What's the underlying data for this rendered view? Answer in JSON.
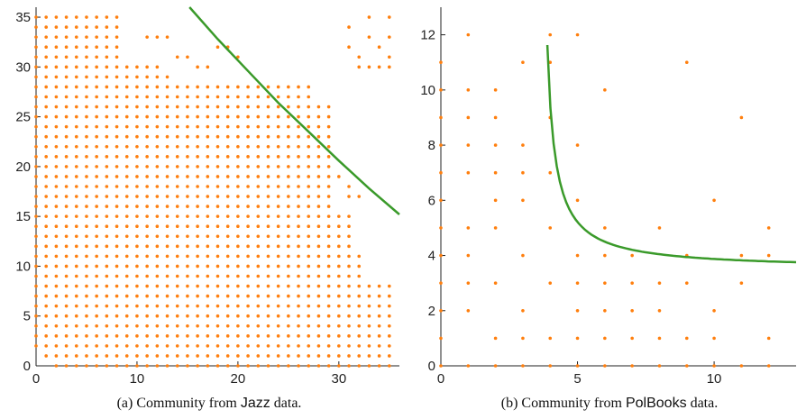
{
  "chart_data": [
    {
      "type": "scatter",
      "caption": {
        "prefix": "(a) Community from ",
        "dataset": "Jazz",
        "suffix": " data."
      },
      "xlim": [
        0,
        36
      ],
      "ylim": [
        0,
        36
      ],
      "xticks": [
        0,
        10,
        20,
        30
      ],
      "yticks": [
        0,
        5,
        10,
        15,
        20,
        25,
        30,
        35
      ],
      "grid": false,
      "point_color": "#ff7f0e",
      "curve_color": "#3a9a2a",
      "points_pattern": {
        "x_range": [
          0,
          35
        ],
        "y_range": [
          0,
          35
        ],
        "fill_rows": [
          {
            "y": 35,
            "x": [
              0,
              8
            ]
          },
          {
            "y": 34,
            "x": [
              0,
              8
            ]
          },
          {
            "y": 33,
            "x": [
              0,
              8
            ]
          },
          {
            "y": 32,
            "x": [
              0,
              8
            ]
          },
          {
            "y": 31,
            "x": [
              0,
              8
            ]
          },
          {
            "y": 30,
            "x": [
              0,
              12
            ]
          },
          {
            "y": 29,
            "x": [
              0,
              13
            ]
          },
          {
            "y": 28,
            "x": [
              0,
              27
            ]
          },
          {
            "y": 27,
            "x": [
              0,
              27
            ]
          },
          {
            "y": 26,
            "x": [
              0,
              29
            ]
          },
          {
            "y": 25,
            "x": [
              0,
              29
            ]
          },
          {
            "y": 24,
            "x": [
              0,
              29
            ]
          },
          {
            "y": 23,
            "x": [
              0,
              29
            ]
          },
          {
            "y": 22,
            "x": [
              0,
              29
            ]
          },
          {
            "y": 21,
            "x": [
              0,
              29
            ]
          },
          {
            "y": 20,
            "x": [
              0,
              29
            ]
          },
          {
            "y": 19,
            "x": [
              0,
              29
            ]
          },
          {
            "y": 18,
            "x": [
              0,
              29
            ]
          },
          {
            "y": 17,
            "x": [
              0,
              29
            ]
          },
          {
            "y": 16,
            "x": [
              0,
              29
            ]
          },
          {
            "y": 15,
            "x": [
              0,
              31
            ]
          },
          {
            "y": 14,
            "x": [
              0,
              31
            ]
          },
          {
            "y": 13,
            "x": [
              0,
              31
            ]
          },
          {
            "y": 12,
            "x": [
              0,
              31
            ]
          },
          {
            "y": 11,
            "x": [
              0,
              32
            ]
          },
          {
            "y": 10,
            "x": [
              0,
              32
            ]
          },
          {
            "y": 9,
            "x": [
              0,
              32
            ]
          },
          {
            "y": 8,
            "x": [
              0,
              35
            ]
          },
          {
            "y": 7,
            "x": [
              0,
              35
            ]
          },
          {
            "y": 6,
            "x": [
              0,
              35
            ]
          },
          {
            "y": 5,
            "x": [
              0,
              35
            ]
          },
          {
            "y": 4,
            "x": [
              0,
              35
            ]
          },
          {
            "y": 3,
            "x": [
              0,
              35
            ]
          },
          {
            "y": 2,
            "x": [
              0,
              35
            ]
          },
          {
            "y": 1,
            "x": [
              1,
              35
            ]
          },
          {
            "y": 0,
            "x": [
              2,
              35
            ]
          }
        ],
        "extra_points": [
          [
            33,
            35
          ],
          [
            35,
            35
          ],
          [
            31,
            34
          ],
          [
            33,
            33
          ],
          [
            35,
            33
          ],
          [
            31,
            32
          ],
          [
            34,
            32
          ],
          [
            32,
            31
          ],
          [
            35,
            31
          ],
          [
            32,
            30
          ],
          [
            33,
            30
          ],
          [
            34,
            30
          ],
          [
            35,
            30
          ],
          [
            18,
            32
          ],
          [
            19,
            32
          ],
          [
            20,
            31
          ],
          [
            11,
            33
          ],
          [
            12,
            33
          ],
          [
            13,
            33
          ],
          [
            14,
            31
          ],
          [
            15,
            31
          ],
          [
            16,
            30
          ],
          [
            17,
            30
          ],
          [
            30,
            19
          ],
          [
            31,
            18
          ],
          [
            31,
            17
          ],
          [
            32,
            17
          ]
        ]
      },
      "curve": {
        "formula": "y = 36 * (1 - (x - 15)^2 / ... ) approx",
        "points": [
          [
            15.2,
            36
          ],
          [
            18,
            32.8
          ],
          [
            21,
            29.6
          ],
          [
            24,
            26.4
          ],
          [
            27,
            23.5
          ],
          [
            30,
            20.6
          ],
          [
            33,
            17.8
          ],
          [
            36,
            15.2
          ]
        ]
      }
    },
    {
      "type": "scatter",
      "caption": {
        "prefix": "(b) Community from ",
        "dataset": "PolBooks",
        "suffix": " data."
      },
      "xlim": [
        0,
        13
      ],
      "ylim": [
        0,
        13
      ],
      "xticks": [
        0,
        5,
        10
      ],
      "yticks": [
        0,
        2,
        4,
        6,
        8,
        10,
        12
      ],
      "grid": false,
      "point_color": "#ff7f0e",
      "curve_color": "#3a9a2a",
      "points": [
        [
          0,
          0
        ],
        [
          0,
          1
        ],
        [
          0,
          2
        ],
        [
          0,
          3
        ],
        [
          0,
          4
        ],
        [
          0,
          5
        ],
        [
          0,
          6
        ],
        [
          0,
          7
        ],
        [
          0,
          8
        ],
        [
          0,
          9
        ],
        [
          0,
          10
        ],
        [
          0,
          11
        ],
        [
          1,
          0
        ],
        [
          1,
          2
        ],
        [
          1,
          3
        ],
        [
          1,
          4
        ],
        [
          1,
          5
        ],
        [
          1,
          7
        ],
        [
          1,
          8
        ],
        [
          1,
          9
        ],
        [
          1,
          10
        ],
        [
          1,
          12
        ],
        [
          2,
          0
        ],
        [
          2,
          1
        ],
        [
          2,
          3
        ],
        [
          2,
          5
        ],
        [
          2,
          6
        ],
        [
          2,
          7
        ],
        [
          2,
          8
        ],
        [
          2,
          9
        ],
        [
          2,
          10
        ],
        [
          3,
          0
        ],
        [
          3,
          1
        ],
        [
          3,
          2
        ],
        [
          3,
          4
        ],
        [
          3,
          6
        ],
        [
          3,
          7
        ],
        [
          3,
          8
        ],
        [
          3,
          11
        ],
        [
          4,
          0
        ],
        [
          4,
          1
        ],
        [
          4,
          3
        ],
        [
          4,
          5
        ],
        [
          4,
          7
        ],
        [
          4,
          9
        ],
        [
          4,
          11
        ],
        [
          4,
          12
        ],
        [
          5,
          0
        ],
        [
          5,
          1
        ],
        [
          5,
          2
        ],
        [
          5,
          3
        ],
        [
          5,
          4
        ],
        [
          5,
          6
        ],
        [
          5,
          8
        ],
        [
          5,
          12
        ],
        [
          6,
          0
        ],
        [
          6,
          1
        ],
        [
          6,
          2
        ],
        [
          6,
          3
        ],
        [
          6,
          4
        ],
        [
          6,
          5
        ],
        [
          6,
          10
        ],
        [
          7,
          0
        ],
        [
          7,
          1
        ],
        [
          7,
          2
        ],
        [
          7,
          3
        ],
        [
          7,
          4
        ],
        [
          8,
          0
        ],
        [
          8,
          1
        ],
        [
          8,
          2
        ],
        [
          8,
          3
        ],
        [
          8,
          5
        ],
        [
          9,
          0
        ],
        [
          9,
          1
        ],
        [
          9,
          3
        ],
        [
          9,
          4
        ],
        [
          9,
          11
        ],
        [
          10,
          0
        ],
        [
          10,
          1
        ],
        [
          10,
          2
        ],
        [
          10,
          6
        ],
        [
          11,
          0
        ],
        [
          11,
          3
        ],
        [
          11,
          4
        ],
        [
          11,
          9
        ],
        [
          12,
          0
        ],
        [
          12,
          1
        ],
        [
          12,
          4
        ],
        [
          12,
          5
        ]
      ],
      "curve": {
        "formula": "y = 3.5 + 2.4 / (x - 3.6)",
        "a": 3.5,
        "b": 2.4,
        "c": 3.6,
        "x_range": [
          3.78,
          13
        ]
      }
    }
  ]
}
